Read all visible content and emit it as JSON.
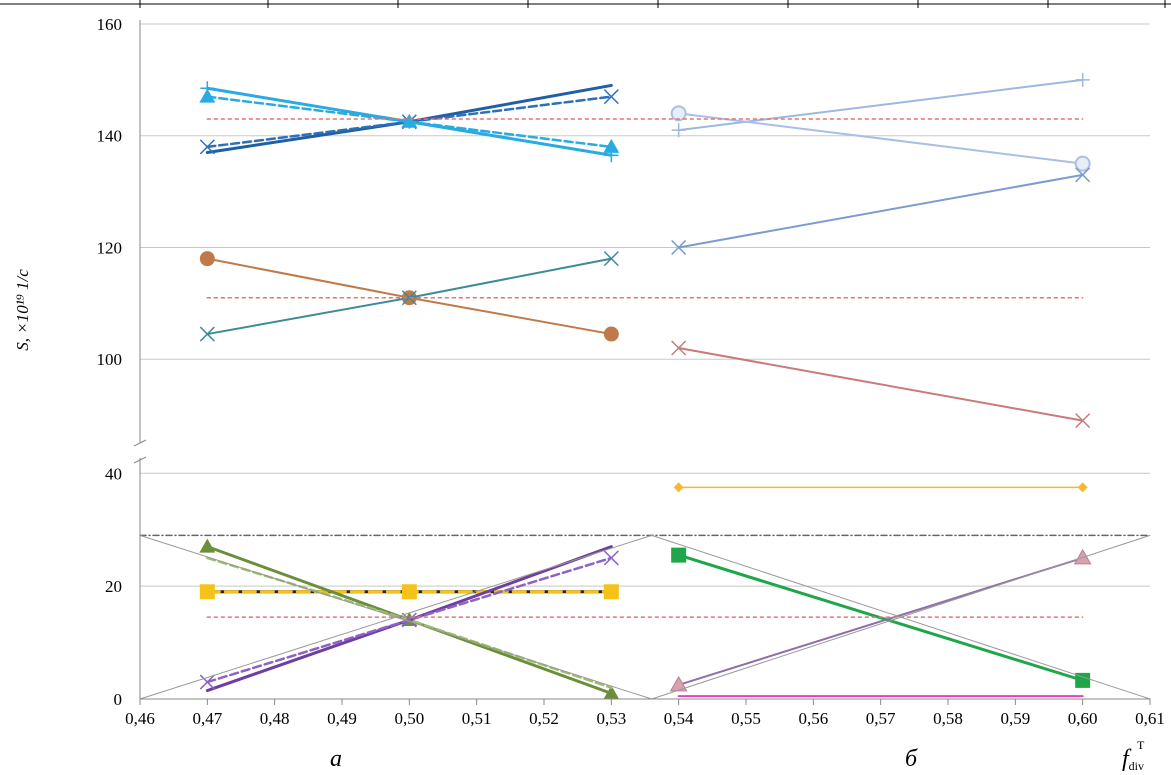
{
  "chart_data": {
    "type": "line",
    "ylabel": "S, ×10¹⁹ 1/с",
    "xlabel_main": "f",
    "xlabel_sup": "T",
    "xlabel_sub": "div",
    "panel_labels": [
      "а",
      "б"
    ],
    "x_ticks": [
      "0,46",
      "0,47",
      "0,48",
      "0,49",
      "0,50",
      "0,51",
      "0,52",
      "0,53",
      "0,54",
      "0,55",
      "0,56",
      "0,57",
      "0,58",
      "0,59",
      "0,60",
      "0,61"
    ],
    "x_tick_values": [
      0.46,
      0.47,
      0.48,
      0.49,
      0.5,
      0.51,
      0.52,
      0.53,
      0.54,
      0.55,
      0.56,
      0.57,
      0.58,
      0.59,
      0.6,
      0.61
    ],
    "xlim": [
      0.46,
      0.61
    ],
    "upper_yticks": [
      100,
      120,
      140,
      160
    ],
    "upper_ylim": [
      85,
      160
    ],
    "lower_yticks": [
      0,
      20,
      40
    ],
    "lower_ylim": [
      0,
      42
    ],
    "grid": true,
    "upper_series": [
      {
        "color": "#1f5fa5",
        "x": [
          0.47,
          0.5,
          0.53
        ],
        "y": [
          137,
          142.5,
          149
        ],
        "marker": "none",
        "dash": "",
        "width": 3
      },
      {
        "color": "#2d6fb8",
        "x": [
          0.47,
          0.5,
          0.53
        ],
        "y": [
          138,
          142.5,
          147
        ],
        "marker": "x",
        "dash": "8,4",
        "width": 2.5
      },
      {
        "color": "#29abe2",
        "x": [
          0.47,
          0.5,
          0.53
        ],
        "y": [
          148.5,
          142.5,
          136.5
        ],
        "marker": "plus",
        "dash": "",
        "width": 3
      },
      {
        "color": "#29abe2",
        "x": [
          0.47,
          0.5,
          0.53
        ],
        "y": [
          147,
          142.5,
          138
        ],
        "marker": "triangle",
        "dash": "8,4",
        "width": 2.5
      },
      {
        "color": "#c07a4a",
        "x": [
          0.47,
          0.5,
          0.53
        ],
        "y": [
          118,
          111,
          104.5
        ],
        "marker": "circle",
        "dash": "",
        "width": 2
      },
      {
        "color": "#3d8b99",
        "x": [
          0.47,
          0.5,
          0.53
        ],
        "y": [
          104.5,
          111,
          118
        ],
        "marker": "x",
        "dash": "",
        "width": 2
      },
      {
        "color": "#9db8e0",
        "x": [
          0.54,
          0.6
        ],
        "y": [
          141,
          150
        ],
        "marker": "plus",
        "dash": "",
        "width": 2
      },
      {
        "color": "#a9c0e4",
        "x": [
          0.54,
          0.6
        ],
        "y": [
          144,
          135
        ],
        "marker": "circle-open",
        "dash": "",
        "width": 2
      },
      {
        "color": "#7c9ccf",
        "x": [
          0.54,
          0.6
        ],
        "y": [
          120,
          133
        ],
        "marker": "x",
        "dash": "",
        "width": 2
      },
      {
        "color": "#c97a7a",
        "x": [
          0.54,
          0.6
        ],
        "y": [
          102,
          89
        ],
        "marker": "x",
        "dash": "",
        "width": 2
      },
      {
        "color": "#e8736f",
        "x": [
          0.47,
          0.6
        ],
        "y": [
          143,
          143
        ],
        "marker": "none",
        "dash": "3,4",
        "width": 1.5
      },
      {
        "color": "#e8736f",
        "x": [
          0.47,
          0.6
        ],
        "y": [
          111,
          111
        ],
        "marker": "none",
        "dash": "3,4",
        "width": 1.5
      }
    ],
    "lower_series": [
      {
        "color": "#222222",
        "x": [
          0.47,
          0.53
        ],
        "y": [
          19,
          19
        ],
        "marker": "none",
        "dash": "",
        "width": 3
      },
      {
        "color": "#f5c21a",
        "x": [
          0.47,
          0.5,
          0.53
        ],
        "y": [
          19,
          19,
          19
        ],
        "marker": "square",
        "dash": "12,6",
        "width": 3
      },
      {
        "color": "#6b8e3a",
        "x": [
          0.47,
          0.5,
          0.53
        ],
        "y": [
          27,
          14,
          1
        ],
        "marker": "triangle",
        "dash": "",
        "width": 3
      },
      {
        "color": "#9bbf6a",
        "x": [
          0.47,
          0.5,
          0.53
        ],
        "y": [
          25,
          14,
          2
        ],
        "marker": "none",
        "dash": "8,4",
        "width": 2.5
      },
      {
        "color": "#6c3fa0",
        "x": [
          0.47,
          0.5,
          0.53
        ],
        "y": [
          1.5,
          14,
          27
        ],
        "marker": "none",
        "dash": "",
        "width": 3
      },
      {
        "color": "#8e63c4",
        "x": [
          0.47,
          0.5,
          0.53
        ],
        "y": [
          3,
          14,
          25
        ],
        "marker": "x",
        "dash": "8,4",
        "width": 2.5
      },
      {
        "color": "#f7b733",
        "x": [
          0.54,
          0.6
        ],
        "y": [
          37.5,
          37.5
        ],
        "marker": "diamond",
        "dash": "",
        "width": 1.5
      },
      {
        "color": "#1fa64a",
        "x": [
          0.54,
          0.6
        ],
        "y": [
          25.5,
          3.3
        ],
        "marker": "square",
        "dash": "",
        "width": 3
      },
      {
        "color": "#8f6fa8",
        "x": [
          0.54,
          0.6
        ],
        "y": [
          2.5,
          25
        ],
        "marker": "triangle-pink",
        "dash": "",
        "width": 2
      },
      {
        "color": "#e040c0",
        "x": [
          0.54,
          0.6
        ],
        "y": [
          0.5,
          0.5
        ],
        "marker": "none",
        "dash": "",
        "width": 2
      },
      {
        "color": "#e8736f",
        "x": [
          0.47,
          0.6
        ],
        "y": [
          14.5,
          14.5
        ],
        "marker": "none",
        "dash": "3,4",
        "width": 1.5
      },
      {
        "color": "#666666",
        "x": [
          0.46,
          0.61
        ],
        "y": [
          29,
          29
        ],
        "marker": "none",
        "dash": "6,3,1,3",
        "width": 1.5
      },
      {
        "color": "#999999",
        "x": [
          0.46,
          0.536
        ],
        "y": [
          0,
          29
        ],
        "marker": "none",
        "dash": "",
        "width": 1
      },
      {
        "color": "#999999",
        "x": [
          0.46,
          0.536
        ],
        "y": [
          29,
          0
        ],
        "marker": "none",
        "dash": "",
        "width": 1
      },
      {
        "color": "#999999",
        "x": [
          0.536,
          0.61
        ],
        "y": [
          0,
          29
        ],
        "marker": "none",
        "dash": "",
        "width": 1
      },
      {
        "color": "#999999",
        "x": [
          0.536,
          0.61
        ],
        "y": [
          29,
          0
        ],
        "marker": "none",
        "dash": "",
        "width": 1
      }
    ]
  }
}
